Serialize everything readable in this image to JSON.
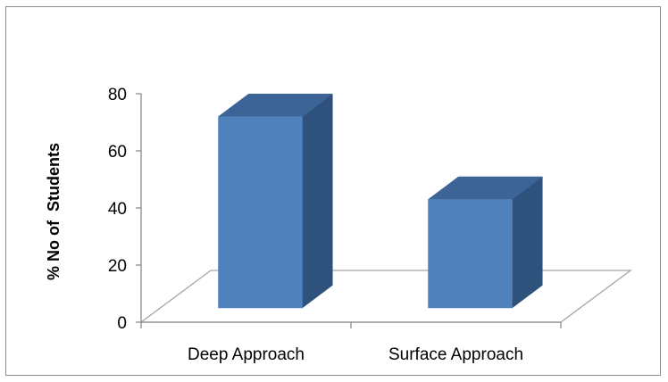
{
  "chart_data": {
    "type": "bar",
    "style": "3d-column",
    "categories": [
      "Deep Approach",
      "Surface Approach"
    ],
    "values": [
      67,
      38
    ],
    "title": "",
    "xlabel": "",
    "ylabel": "% No of  Students",
    "ylim": [
      0,
      80
    ],
    "yticks": [
      "0",
      "20",
      "40",
      "60",
      "80"
    ],
    "grid": false,
    "legend": "none",
    "colors": {
      "bar_front": "#4f81bd",
      "bar_top": "#3c6496",
      "bar_side": "#2f527c",
      "floor_line": "#a6a6a6",
      "axis_line": "#8c8c8c",
      "frame": "#8c8c8c"
    }
  }
}
